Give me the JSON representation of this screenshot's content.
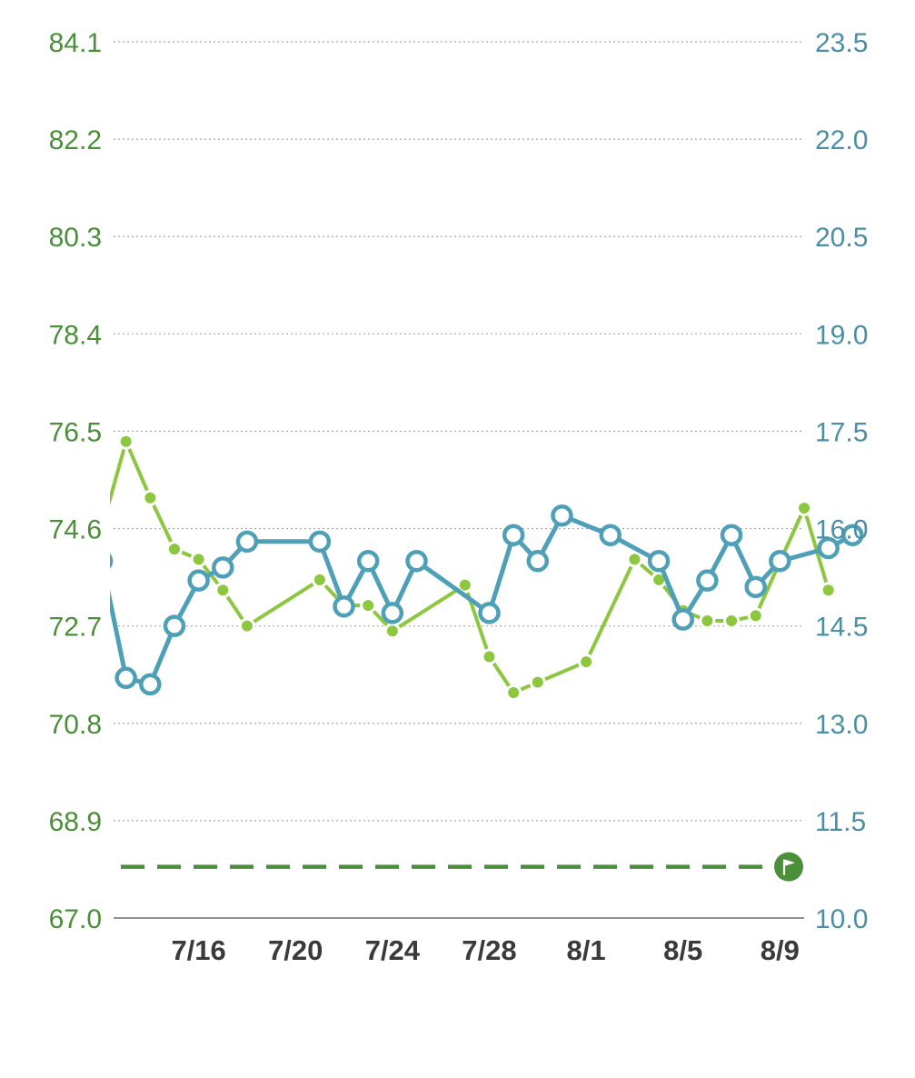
{
  "chart_data": {
    "type": "line",
    "title": "",
    "xlabel": "",
    "ylabel": "",
    "x_tick_labels": [
      "7/16",
      "7/20",
      "7/24",
      "7/28",
      "8/1",
      "8/5",
      "8/9"
    ],
    "y_left": {
      "ticks": [
        "67.0",
        "68.9",
        "70.8",
        "72.7",
        "74.6",
        "76.5",
        "78.4",
        "80.3",
        "82.2",
        "84.1"
      ],
      "ylim": [
        67.0,
        84.1
      ]
    },
    "y_right": {
      "ticks": [
        "10.0",
        "11.5",
        "13.0",
        "14.5",
        "16.0",
        "17.5",
        "19.0",
        "20.5",
        "22.0",
        "23.5"
      ],
      "ylim": [
        10.0,
        23.5
      ]
    },
    "x_range": [
      "7/12",
      "8/10"
    ],
    "grid": true,
    "goal": {
      "axis": "left",
      "value": 68.0,
      "icon": "flag-icon"
    },
    "series": [
      {
        "axis": "left",
        "color": "#8DC63F",
        "marker": "filled-circle",
        "points": [
          [
            "7/12",
            74.6
          ],
          [
            "7/13",
            76.3
          ],
          [
            "7/14",
            75.2
          ],
          [
            "7/15",
            74.2
          ],
          [
            "7/16",
            74.0
          ],
          [
            "7/17",
            73.4
          ],
          [
            "7/18",
            72.7
          ],
          [
            "7/21",
            73.6
          ],
          [
            "7/22",
            73.1
          ],
          [
            "7/23",
            73.1
          ],
          [
            "7/24",
            72.6
          ],
          [
            "7/27",
            73.5
          ],
          [
            "7/28",
            72.1
          ],
          [
            "7/29",
            71.4
          ],
          [
            "7/30",
            71.6
          ],
          [
            "8/1",
            72.0
          ],
          [
            "8/3",
            74.0
          ],
          [
            "8/4",
            73.6
          ],
          [
            "8/5",
            73.0
          ],
          [
            "8/6",
            72.8
          ],
          [
            "8/7",
            72.8
          ],
          [
            "8/8",
            72.9
          ],
          [
            "8/10",
            75.0
          ],
          [
            "8/11",
            73.4
          ]
        ]
      },
      {
        "axis": "right",
        "color": "#4DA0B8",
        "marker": "hollow-circle",
        "points": [
          [
            "7/12",
            15.5
          ],
          [
            "7/13",
            13.7
          ],
          [
            "7/14",
            13.6
          ],
          [
            "7/15",
            14.5
          ],
          [
            "7/16",
            15.2
          ],
          [
            "7/17",
            15.4
          ],
          [
            "7/18",
            15.8
          ],
          [
            "7/21",
            15.8
          ],
          [
            "7/22",
            14.8
          ],
          [
            "7/23",
            15.5
          ],
          [
            "7/24",
            14.7
          ],
          [
            "7/25",
            15.5
          ],
          [
            "7/28",
            14.7
          ],
          [
            "7/29",
            15.9
          ],
          [
            "7/30",
            15.5
          ],
          [
            "7/31",
            16.2
          ],
          [
            "8/2",
            15.9
          ],
          [
            "8/4",
            15.5
          ],
          [
            "8/5",
            14.6
          ],
          [
            "8/6",
            15.2
          ],
          [
            "8/7",
            15.9
          ],
          [
            "8/8",
            15.1
          ],
          [
            "8/9",
            15.5
          ],
          [
            "8/11",
            15.7
          ],
          [
            "8/12",
            15.9
          ]
        ]
      }
    ]
  }
}
